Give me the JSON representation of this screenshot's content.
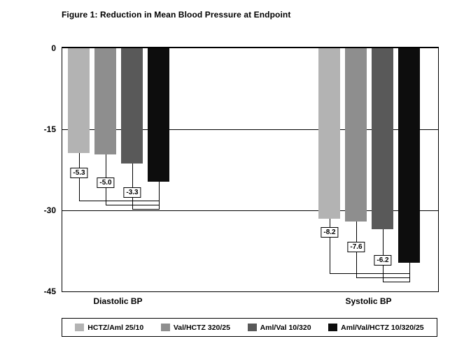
{
  "chart_data": {
    "type": "bar",
    "title": "Figure 1: Reduction in Mean Blood Pressure at Endpoint",
    "ylim": [
      -45,
      0
    ],
    "yticks": [
      0,
      -15,
      -30,
      -45
    ],
    "grid": "horizontal gridlines at -15 and -30",
    "legend_position": "bottom",
    "groups": [
      "Diastolic BP",
      "Systolic BP"
    ],
    "series": [
      {
        "name": "HCTZ/Aml 25/10",
        "color": "#b3b3b3",
        "values": [
          -19.4,
          -31.5
        ]
      },
      {
        "name": "Val/HCTZ 320/25",
        "color": "#8e8e8e",
        "values": [
          -19.7,
          -32.1
        ]
      },
      {
        "name": "Aml/Val 10/320",
        "color": "#595959",
        "values": [
          -21.4,
          -33.5
        ]
      },
      {
        "name": "Aml/Val/HCTZ 10/320/25",
        "color": "#0d0d0d",
        "values": [
          -24.7,
          -39.7
        ]
      }
    ],
    "difference_labels": [
      {
        "group": "Diastolic BP",
        "labels": [
          "-5.3",
          "-5.0",
          "-3.3"
        ]
      },
      {
        "group": "Systolic BP",
        "labels": [
          "-8.2",
          "-7.6",
          "-6.2"
        ]
      }
    ]
  }
}
